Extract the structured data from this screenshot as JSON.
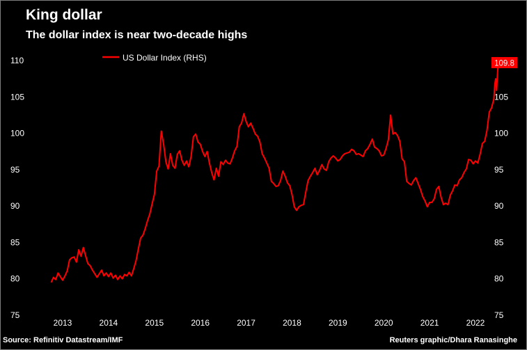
{
  "header": {
    "title": "King dollar",
    "subtitle": "The dollar index is near two-decade highs"
  },
  "footer": {
    "source": "Source: Refinitiv Datastream/IMF",
    "credit": "Reuters graphic/Dhara Ranasinghe"
  },
  "colors": {
    "background": "#000000",
    "series": "#ff0000",
    "text": "#ffffff",
    "label_box": "#ff0000"
  },
  "chart_data": {
    "type": "line",
    "title": "King dollar",
    "subtitle": "The dollar index is near two-decade highs",
    "xlabel": "",
    "ylabel": "",
    "ylim": [
      75,
      110
    ],
    "xlim": [
      2012.75,
      2022.5
    ],
    "grid": false,
    "legend_position": "top-left",
    "y_ticks": [
      "75",
      "80",
      "85",
      "90",
      "95",
      "100",
      "105",
      "110"
    ],
    "x_ticks": [
      "2013",
      "2014",
      "2015",
      "2016",
      "2017",
      "2018",
      "2019",
      "2020",
      "2021",
      "2022"
    ],
    "end_label": "109.8",
    "series": [
      {
        "name": "US Dollar Index (RHS)",
        "color": "#ff0000",
        "points": [
          [
            2012.75,
            79.5
          ],
          [
            2012.8,
            80.2
          ],
          [
            2012.85,
            79.9
          ],
          [
            2012.9,
            80.8
          ],
          [
            2012.95,
            80.3
          ],
          [
            2013.0,
            79.8
          ],
          [
            2013.05,
            80.4
          ],
          [
            2013.1,
            81.1
          ],
          [
            2013.15,
            82.6
          ],
          [
            2013.2,
            82.9
          ],
          [
            2013.25,
            83.0
          ],
          [
            2013.3,
            82.3
          ],
          [
            2013.35,
            84.0
          ],
          [
            2013.4,
            83.1
          ],
          [
            2013.45,
            84.3
          ],
          [
            2013.5,
            83.2
          ],
          [
            2013.55,
            82.1
          ],
          [
            2013.6,
            81.8
          ],
          [
            2013.65,
            81.2
          ],
          [
            2013.7,
            80.7
          ],
          [
            2013.75,
            80.2
          ],
          [
            2013.8,
            80.7
          ],
          [
            2013.85,
            81.2
          ],
          [
            2013.9,
            80.4
          ],
          [
            2013.95,
            80.8
          ],
          [
            2014.0,
            80.3
          ],
          [
            2014.05,
            80.8
          ],
          [
            2014.1,
            80.1
          ],
          [
            2014.15,
            80.5
          ],
          [
            2014.2,
            79.9
          ],
          [
            2014.25,
            80.4
          ],
          [
            2014.3,
            80.0
          ],
          [
            2014.35,
            80.6
          ],
          [
            2014.4,
            80.4
          ],
          [
            2014.45,
            80.9
          ],
          [
            2014.5,
            80.4
          ],
          [
            2014.55,
            81.4
          ],
          [
            2014.6,
            82.5
          ],
          [
            2014.65,
            84.1
          ],
          [
            2014.7,
            85.6
          ],
          [
            2014.75,
            86.0
          ],
          [
            2014.8,
            86.9
          ],
          [
            2014.85,
            88.0
          ],
          [
            2014.9,
            88.9
          ],
          [
            2014.95,
            90.3
          ],
          [
            2015.0,
            91.6
          ],
          [
            2015.05,
            94.8
          ],
          [
            2015.1,
            95.5
          ],
          [
            2015.15,
            100.3
          ],
          [
            2015.2,
            98.5
          ],
          [
            2015.25,
            96.1
          ],
          [
            2015.3,
            95.1
          ],
          [
            2015.35,
            97.2
          ],
          [
            2015.4,
            95.6
          ],
          [
            2015.45,
            95.2
          ],
          [
            2015.5,
            97.1
          ],
          [
            2015.55,
            97.6
          ],
          [
            2015.6,
            96.3
          ],
          [
            2015.65,
            95.6
          ],
          [
            2015.7,
            96.2
          ],
          [
            2015.75,
            95.4
          ],
          [
            2015.8,
            96.8
          ],
          [
            2015.85,
            99.5
          ],
          [
            2015.9,
            99.9
          ],
          [
            2015.95,
            98.8
          ],
          [
            2016.0,
            98.5
          ],
          [
            2016.05,
            97.5
          ],
          [
            2016.1,
            96.8
          ],
          [
            2016.15,
            97.5
          ],
          [
            2016.2,
            95.9
          ],
          [
            2016.25,
            94.6
          ],
          [
            2016.3,
            93.6
          ],
          [
            2016.35,
            95.2
          ],
          [
            2016.4,
            94.1
          ],
          [
            2016.45,
            96.1
          ],
          [
            2016.5,
            95.7
          ],
          [
            2016.55,
            96.3
          ],
          [
            2016.6,
            95.9
          ],
          [
            2016.65,
            95.8
          ],
          [
            2016.7,
            96.6
          ],
          [
            2016.75,
            97.6
          ],
          [
            2016.8,
            98.2
          ],
          [
            2016.85,
            100.9
          ],
          [
            2016.9,
            101.4
          ],
          [
            2016.95,
            102.7
          ],
          [
            2017.0,
            101.6
          ],
          [
            2017.05,
            100.9
          ],
          [
            2017.1,
            101.4
          ],
          [
            2017.15,
            100.7
          ],
          [
            2017.2,
            99.9
          ],
          [
            2017.25,
            99.6
          ],
          [
            2017.3,
            98.8
          ],
          [
            2017.35,
            97.2
          ],
          [
            2017.4,
            96.6
          ],
          [
            2017.45,
            95.9
          ],
          [
            2017.5,
            95.2
          ],
          [
            2017.55,
            93.4
          ],
          [
            2017.6,
            93.1
          ],
          [
            2017.65,
            92.7
          ],
          [
            2017.7,
            92.8
          ],
          [
            2017.75,
            93.5
          ],
          [
            2017.8,
            94.8
          ],
          [
            2017.85,
            94.1
          ],
          [
            2017.9,
            93.2
          ],
          [
            2017.95,
            92.8
          ],
          [
            2018.0,
            91.6
          ],
          [
            2018.05,
            89.9
          ],
          [
            2018.1,
            89.4
          ],
          [
            2018.15,
            89.9
          ],
          [
            2018.2,
            90.1
          ],
          [
            2018.25,
            90.2
          ],
          [
            2018.3,
            91.9
          ],
          [
            2018.35,
            93.5
          ],
          [
            2018.4,
            94.1
          ],
          [
            2018.45,
            94.6
          ],
          [
            2018.5,
            95.2
          ],
          [
            2018.55,
            94.3
          ],
          [
            2018.6,
            94.9
          ],
          [
            2018.65,
            95.7
          ],
          [
            2018.7,
            95.1
          ],
          [
            2018.75,
            94.9
          ],
          [
            2018.8,
            96.1
          ],
          [
            2018.85,
            96.6
          ],
          [
            2018.9,
            96.9
          ],
          [
            2018.95,
            96.6
          ],
          [
            2019.0,
            96.2
          ],
          [
            2019.05,
            96.4
          ],
          [
            2019.1,
            96.9
          ],
          [
            2019.15,
            97.2
          ],
          [
            2019.2,
            97.3
          ],
          [
            2019.25,
            97.4
          ],
          [
            2019.3,
            97.8
          ],
          [
            2019.35,
            97.6
          ],
          [
            2019.4,
            97.1
          ],
          [
            2019.45,
            97.2
          ],
          [
            2019.5,
            97.0
          ],
          [
            2019.55,
            96.8
          ],
          [
            2019.6,
            97.6
          ],
          [
            2019.65,
            97.9
          ],
          [
            2019.7,
            98.5
          ],
          [
            2019.75,
            99.2
          ],
          [
            2019.8,
            98.1
          ],
          [
            2019.85,
            97.9
          ],
          [
            2019.9,
            97.6
          ],
          [
            2019.95,
            96.9
          ],
          [
            2020.0,
            97.0
          ],
          [
            2020.05,
            97.9
          ],
          [
            2020.1,
            99.1
          ],
          [
            2020.15,
            102.5
          ],
          [
            2020.2,
            99.9
          ],
          [
            2020.25,
            100.1
          ],
          [
            2020.3,
            99.7
          ],
          [
            2020.35,
            98.9
          ],
          [
            2020.4,
            96.5
          ],
          [
            2020.45,
            96.1
          ],
          [
            2020.5,
            93.4
          ],
          [
            2020.55,
            93.1
          ],
          [
            2020.6,
            92.9
          ],
          [
            2020.65,
            93.5
          ],
          [
            2020.7,
            93.9
          ],
          [
            2020.75,
            93.1
          ],
          [
            2020.8,
            92.3
          ],
          [
            2020.85,
            91.3
          ],
          [
            2020.9,
            90.7
          ],
          [
            2020.95,
            89.9
          ],
          [
            2021.0,
            90.5
          ],
          [
            2021.05,
            90.5
          ],
          [
            2021.1,
            91.0
          ],
          [
            2021.15,
            92.3
          ],
          [
            2021.2,
            92.7
          ],
          [
            2021.25,
            91.2
          ],
          [
            2021.3,
            90.2
          ],
          [
            2021.35,
            90.4
          ],
          [
            2021.4,
            90.2
          ],
          [
            2021.45,
            91.5
          ],
          [
            2021.5,
            92.1
          ],
          [
            2021.55,
            92.9
          ],
          [
            2021.6,
            92.8
          ],
          [
            2021.65,
            93.6
          ],
          [
            2021.7,
            93.9
          ],
          [
            2021.75,
            94.6
          ],
          [
            2021.8,
            95.1
          ],
          [
            2021.85,
            96.4
          ],
          [
            2021.9,
            96.3
          ],
          [
            2021.95,
            95.8
          ],
          [
            2022.0,
            96.2
          ],
          [
            2022.05,
            95.9
          ],
          [
            2022.1,
            97.1
          ],
          [
            2022.15,
            98.6
          ],
          [
            2022.2,
            98.9
          ],
          [
            2022.25,
            100.4
          ],
          [
            2022.3,
            102.9
          ],
          [
            2022.35,
            103.5
          ],
          [
            2022.4,
            104.7
          ],
          [
            2022.42,
            106.7
          ],
          [
            2022.44,
            107.5
          ],
          [
            2022.46,
            105.9
          ],
          [
            2022.48,
            108.2
          ],
          [
            2022.5,
            109.8
          ]
        ]
      }
    ]
  }
}
